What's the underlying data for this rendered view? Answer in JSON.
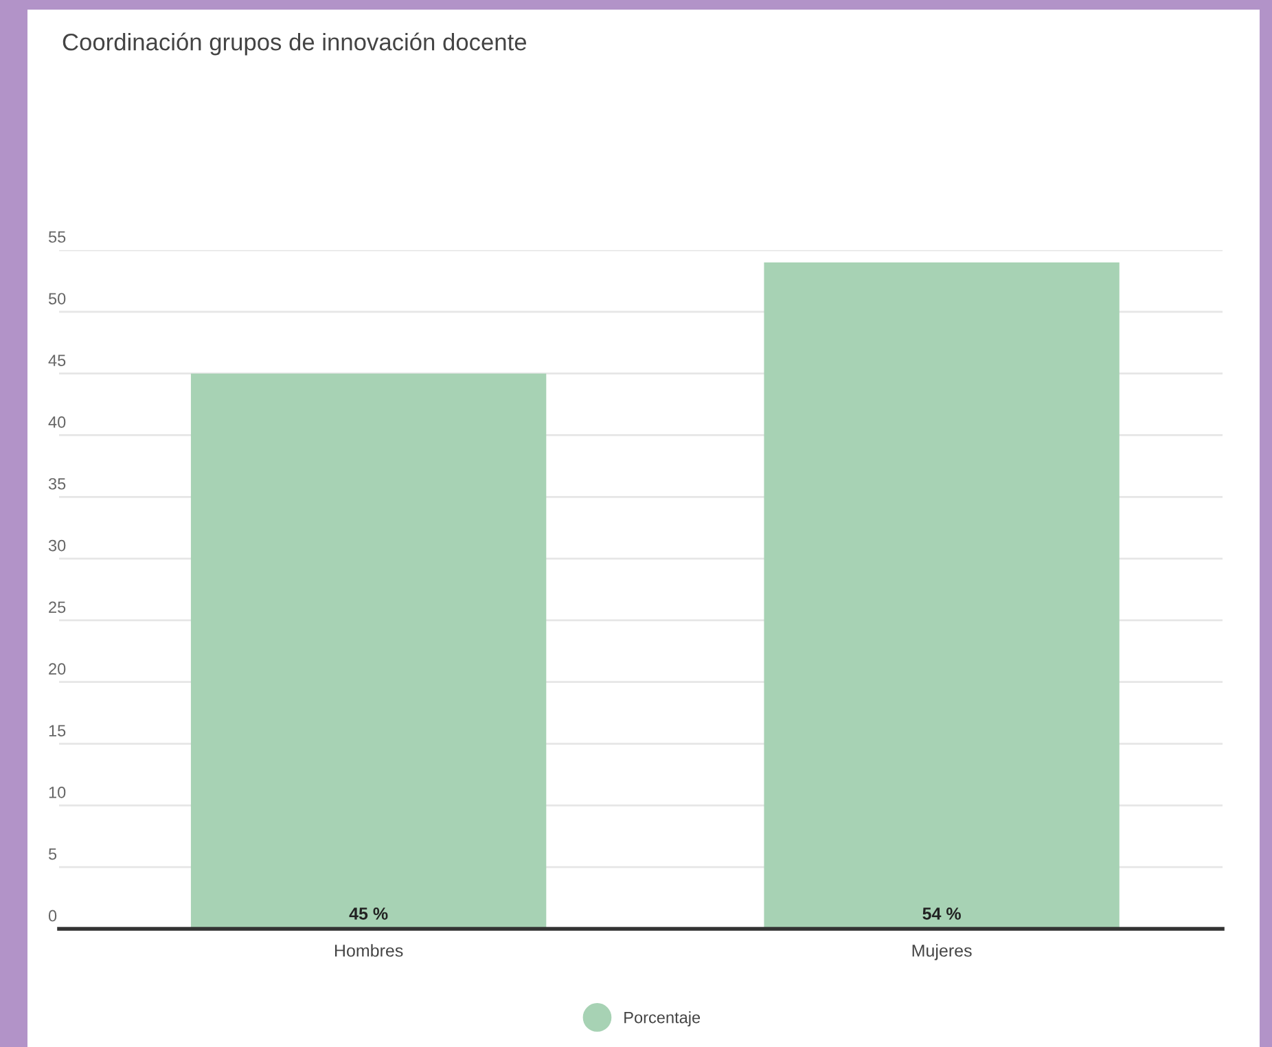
{
  "chart_data": {
    "type": "bar",
    "title": "Coordinación grupos de innovación docente",
    "categories": [
      "Hombres",
      "Mujeres"
    ],
    "series": [
      {
        "name": "Porcentaje",
        "color": "#a7d2b4",
        "values": [
          45,
          54
        ],
        "value_labels": [
          "45 %",
          "54 %"
        ]
      }
    ],
    "ylim": [
      0,
      55
    ],
    "yticks": [
      0,
      5,
      10,
      15,
      20,
      25,
      30,
      35,
      40,
      45,
      50,
      55
    ],
    "grid": "y",
    "legend": "bottom"
  }
}
